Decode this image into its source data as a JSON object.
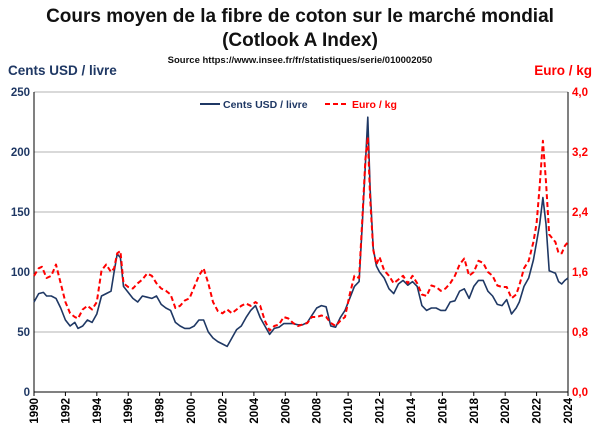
{
  "title_line1": "Cours moyen de la fibre de coton sur le marché mondial",
  "title_line2": "(Cotlook A Index)",
  "source": "Source https://www.insee.fr/fr/statistiques/serie/010002050",
  "ylabel_left": "Cents USD / livre",
  "ylabel_right": "Euro / kg",
  "colors": {
    "usd": "#1f3864",
    "eur": "#ff0000"
  },
  "chart_data": {
    "type": "line",
    "title": "Cours moyen de la fibre de coton sur le marché mondial (Cotlook A Index)",
    "xlim": [
      1990,
      2024
    ],
    "x_ticks": [
      1990,
      1992,
      1994,
      1996,
      1998,
      2000,
      2002,
      2004,
      2006,
      2008,
      2010,
      2012,
      2014,
      2016,
      2018,
      2020,
      2022,
      2024
    ],
    "ylim_left": [
      0,
      250
    ],
    "y_ticks_left": [
      0,
      50,
      100,
      150,
      200,
      250
    ],
    "ylim_right": [
      0,
      4
    ],
    "y_ticks_right": [
      "0,0",
      "0,8",
      "1,6",
      "2,4",
      "3,2",
      "4,0"
    ],
    "y_ticks_right_values": [
      0,
      0.8,
      1.6,
      2.4,
      3.2,
      4.0
    ],
    "series": [
      {
        "name": "Cents USD / livre",
        "axis": "left",
        "points": [
          [
            1990.0,
            75
          ],
          [
            1990.3,
            82
          ],
          [
            1990.6,
            83
          ],
          [
            1990.8,
            80
          ],
          [
            1991.1,
            80
          ],
          [
            1991.4,
            78
          ],
          [
            1991.7,
            70
          ],
          [
            1992.0,
            60
          ],
          [
            1992.3,
            55
          ],
          [
            1992.6,
            58
          ],
          [
            1992.8,
            53
          ],
          [
            1993.1,
            55
          ],
          [
            1993.4,
            60
          ],
          [
            1993.7,
            58
          ],
          [
            1994.0,
            65
          ],
          [
            1994.3,
            80
          ],
          [
            1994.6,
            82
          ],
          [
            1994.9,
            84
          ],
          [
            1995.1,
            100
          ],
          [
            1995.3,
            115
          ],
          [
            1995.5,
            112
          ],
          [
            1995.7,
            88
          ],
          [
            1996.0,
            83
          ],
          [
            1996.3,
            78
          ],
          [
            1996.6,
            75
          ],
          [
            1996.9,
            80
          ],
          [
            1997.2,
            79
          ],
          [
            1997.5,
            78
          ],
          [
            1997.8,
            80
          ],
          [
            1998.1,
            73
          ],
          [
            1998.4,
            70
          ],
          [
            1998.7,
            68
          ],
          [
            1999.0,
            58
          ],
          [
            1999.3,
            55
          ],
          [
            1999.6,
            53
          ],
          [
            1999.9,
            53
          ],
          [
            2000.2,
            55
          ],
          [
            2000.5,
            60
          ],
          [
            2000.8,
            60
          ],
          [
            2001.1,
            50
          ],
          [
            2001.4,
            45
          ],
          [
            2001.7,
            42
          ],
          [
            2002.0,
            40
          ],
          [
            2002.3,
            38
          ],
          [
            2002.6,
            45
          ],
          [
            2002.9,
            52
          ],
          [
            2003.2,
            55
          ],
          [
            2003.5,
            62
          ],
          [
            2003.8,
            68
          ],
          [
            2004.1,
            72
          ],
          [
            2004.4,
            62
          ],
          [
            2004.7,
            55
          ],
          [
            2005.0,
            48
          ],
          [
            2005.3,
            53
          ],
          [
            2005.6,
            54
          ],
          [
            2005.9,
            57
          ],
          [
            2006.2,
            57
          ],
          [
            2006.5,
            57
          ],
          [
            2006.8,
            56
          ],
          [
            2007.1,
            56
          ],
          [
            2007.4,
            58
          ],
          [
            2007.7,
            64
          ],
          [
            2008.0,
            70
          ],
          [
            2008.3,
            72
          ],
          [
            2008.6,
            71
          ],
          [
            2008.9,
            55
          ],
          [
            2009.2,
            54
          ],
          [
            2009.5,
            62
          ],
          [
            2009.8,
            68
          ],
          [
            2010.1,
            78
          ],
          [
            2010.4,
            88
          ],
          [
            2010.7,
            92
          ],
          [
            2010.9,
            140
          ],
          [
            2011.1,
            190
          ],
          [
            2011.25,
            229
          ],
          [
            2011.4,
            170
          ],
          [
            2011.6,
            120
          ],
          [
            2011.8,
            105
          ],
          [
            2012.0,
            100
          ],
          [
            2012.3,
            95
          ],
          [
            2012.6,
            86
          ],
          [
            2012.9,
            82
          ],
          [
            2013.2,
            90
          ],
          [
            2013.5,
            93
          ],
          [
            2013.8,
            89
          ],
          [
            2014.1,
            92
          ],
          [
            2014.4,
            88
          ],
          [
            2014.7,
            72
          ],
          [
            2015.0,
            68
          ],
          [
            2015.3,
            70
          ],
          [
            2015.6,
            70
          ],
          [
            2015.9,
            68
          ],
          [
            2016.2,
            68
          ],
          [
            2016.5,
            75
          ],
          [
            2016.8,
            76
          ],
          [
            2017.1,
            84
          ],
          [
            2017.4,
            86
          ],
          [
            2017.7,
            78
          ],
          [
            2018.0,
            88
          ],
          [
            2018.3,
            93
          ],
          [
            2018.6,
            93
          ],
          [
            2018.9,
            84
          ],
          [
            2019.2,
            80
          ],
          [
            2019.5,
            73
          ],
          [
            2019.8,
            72
          ],
          [
            2020.1,
            77
          ],
          [
            2020.4,
            65
          ],
          [
            2020.7,
            70
          ],
          [
            2020.9,
            75
          ],
          [
            2021.2,
            88
          ],
          [
            2021.5,
            95
          ],
          [
            2021.8,
            110
          ],
          [
            2022.0,
            125
          ],
          [
            2022.2,
            140
          ],
          [
            2022.4,
            162
          ],
          [
            2022.6,
            140
          ],
          [
            2022.8,
            101
          ],
          [
            2023.0,
            100
          ],
          [
            2023.2,
            99
          ],
          [
            2023.4,
            92
          ],
          [
            2023.6,
            90
          ],
          [
            2023.8,
            93
          ],
          [
            2024.0,
            95
          ]
        ]
      },
      {
        "name": "Euro / kg",
        "axis": "right",
        "points": [
          [
            1990.0,
            1.55
          ],
          [
            1990.3,
            1.65
          ],
          [
            1990.5,
            1.67
          ],
          [
            1990.8,
            1.52
          ],
          [
            1991.1,
            1.55
          ],
          [
            1991.4,
            1.7
          ],
          [
            1991.7,
            1.45
          ],
          [
            1992.0,
            1.2
          ],
          [
            1992.3,
            1.05
          ],
          [
            1992.6,
            1.0
          ],
          [
            1992.8,
            0.98
          ],
          [
            1993.1,
            1.1
          ],
          [
            1993.4,
            1.15
          ],
          [
            1993.7,
            1.1
          ],
          [
            1994.0,
            1.2
          ],
          [
            1994.3,
            1.62
          ],
          [
            1994.6,
            1.7
          ],
          [
            1994.9,
            1.6
          ],
          [
            1995.1,
            1.65
          ],
          [
            1995.3,
            1.85
          ],
          [
            1995.5,
            1.88
          ],
          [
            1995.7,
            1.45
          ],
          [
            1996.0,
            1.4
          ],
          [
            1996.3,
            1.38
          ],
          [
            1996.6,
            1.45
          ],
          [
            1996.9,
            1.5
          ],
          [
            1997.2,
            1.58
          ],
          [
            1997.5,
            1.55
          ],
          [
            1997.8,
            1.45
          ],
          [
            1998.1,
            1.38
          ],
          [
            1998.4,
            1.35
          ],
          [
            1998.7,
            1.3
          ],
          [
            1999.0,
            1.12
          ],
          [
            1999.3,
            1.15
          ],
          [
            1999.6,
            1.22
          ],
          [
            1999.9,
            1.25
          ],
          [
            2000.2,
            1.4
          ],
          [
            2000.5,
            1.55
          ],
          [
            2000.8,
            1.65
          ],
          [
            2001.1,
            1.45
          ],
          [
            2001.4,
            1.2
          ],
          [
            2001.7,
            1.08
          ],
          [
            2002.0,
            1.05
          ],
          [
            2002.3,
            1.1
          ],
          [
            2002.6,
            1.05
          ],
          [
            2002.9,
            1.1
          ],
          [
            2003.2,
            1.15
          ],
          [
            2003.5,
            1.18
          ],
          [
            2003.8,
            1.15
          ],
          [
            2004.1,
            1.2
          ],
          [
            2004.4,
            1.15
          ],
          [
            2004.7,
            0.95
          ],
          [
            2005.0,
            0.82
          ],
          [
            2005.3,
            0.88
          ],
          [
            2005.6,
            0.9
          ],
          [
            2005.9,
            1.0
          ],
          [
            2006.2,
            0.98
          ],
          [
            2006.5,
            0.92
          ],
          [
            2006.8,
            0.88
          ],
          [
            2007.1,
            0.9
          ],
          [
            2007.4,
            0.92
          ],
          [
            2007.7,
            1.0
          ],
          [
            2008.0,
            1.0
          ],
          [
            2008.3,
            1.02
          ],
          [
            2008.6,
            1.0
          ],
          [
            2008.9,
            0.92
          ],
          [
            2009.2,
            0.88
          ],
          [
            2009.5,
            0.95
          ],
          [
            2009.8,
            1.0
          ],
          [
            2010.1,
            1.3
          ],
          [
            2010.4,
            1.55
          ],
          [
            2010.7,
            1.52
          ],
          [
            2010.9,
            2.3
          ],
          [
            2011.1,
            3.1
          ],
          [
            2011.25,
            3.4
          ],
          [
            2011.4,
            2.6
          ],
          [
            2011.6,
            1.9
          ],
          [
            2011.8,
            1.7
          ],
          [
            2012.0,
            1.8
          ],
          [
            2012.3,
            1.62
          ],
          [
            2012.6,
            1.55
          ],
          [
            2012.9,
            1.45
          ],
          [
            2013.2,
            1.5
          ],
          [
            2013.5,
            1.55
          ],
          [
            2013.8,
            1.45
          ],
          [
            2014.1,
            1.55
          ],
          [
            2014.4,
            1.45
          ],
          [
            2014.7,
            1.3
          ],
          [
            2015.0,
            1.28
          ],
          [
            2015.3,
            1.42
          ],
          [
            2015.6,
            1.4
          ],
          [
            2015.9,
            1.35
          ],
          [
            2016.2,
            1.38
          ],
          [
            2016.5,
            1.45
          ],
          [
            2016.8,
            1.55
          ],
          [
            2017.1,
            1.7
          ],
          [
            2017.4,
            1.78
          ],
          [
            2017.7,
            1.55
          ],
          [
            2018.0,
            1.6
          ],
          [
            2018.3,
            1.75
          ],
          [
            2018.6,
            1.72
          ],
          [
            2018.9,
            1.6
          ],
          [
            2019.2,
            1.55
          ],
          [
            2019.5,
            1.42
          ],
          [
            2019.8,
            1.4
          ],
          [
            2020.1,
            1.4
          ],
          [
            2020.4,
            1.25
          ],
          [
            2020.7,
            1.3
          ],
          [
            2020.9,
            1.42
          ],
          [
            2021.2,
            1.65
          ],
          [
            2021.5,
            1.75
          ],
          [
            2021.8,
            2.0
          ],
          [
            2022.0,
            2.25
          ],
          [
            2022.2,
            2.75
          ],
          [
            2022.4,
            3.35
          ],
          [
            2022.6,
            2.8
          ],
          [
            2022.8,
            2.1
          ],
          [
            2023.0,
            2.05
          ],
          [
            2023.2,
            2.0
          ],
          [
            2023.4,
            1.85
          ],
          [
            2023.6,
            1.85
          ],
          [
            2023.8,
            1.95
          ],
          [
            2024.0,
            2.0
          ]
        ]
      }
    ]
  }
}
